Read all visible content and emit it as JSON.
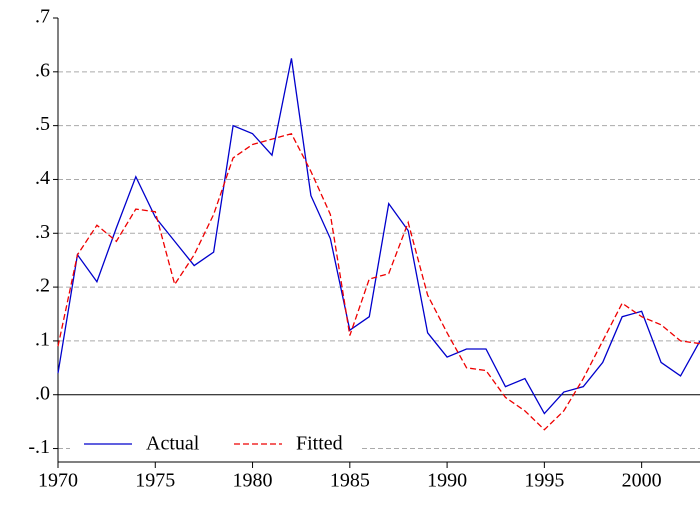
{
  "chart_data": {
    "type": "line",
    "x": [
      1970,
      1971,
      1972,
      1973,
      1974,
      1975,
      1976,
      1977,
      1978,
      1979,
      1980,
      1981,
      1982,
      1983,
      1984,
      1985,
      1986,
      1987,
      1988,
      1989,
      1990,
      1991,
      1992,
      1993,
      1994,
      1995,
      1996,
      1997,
      1998,
      1999,
      2000,
      2001,
      2002,
      2003
    ],
    "series": [
      {
        "name": "Actual",
        "color": "#0000cc",
        "style": "solid",
        "values": [
          0.04,
          0.26,
          0.21,
          0.31,
          0.405,
          0.33,
          0.285,
          0.24,
          0.265,
          0.5,
          0.485,
          0.445,
          0.625,
          0.37,
          0.29,
          0.12,
          0.145,
          0.355,
          0.305,
          0.115,
          0.07,
          0.085,
          0.085,
          0.015,
          0.03,
          -0.035,
          0.005,
          0.015,
          0.06,
          0.145,
          0.155,
          0.06,
          0.035,
          0.1
        ]
      },
      {
        "name": "Fitted",
        "color": "#ee0000",
        "style": "dashed",
        "values": [
          0.09,
          0.26,
          0.315,
          0.285,
          0.345,
          0.34,
          0.205,
          0.26,
          0.335,
          0.44,
          0.465,
          0.475,
          0.485,
          0.415,
          0.335,
          0.11,
          0.215,
          0.225,
          0.32,
          0.185,
          0.115,
          0.05,
          0.045,
          -0.005,
          -0.03,
          -0.065,
          -0.03,
          0.03,
          0.1,
          0.17,
          0.145,
          0.13,
          0.1,
          0.095
        ]
      }
    ],
    "xlim": [
      1970,
      2003
    ],
    "xticks": [
      1970,
      1975,
      1980,
      1985,
      1990,
      1995,
      2000
    ],
    "ylim": [
      -0.125,
      0.7
    ],
    "yticks": [
      {
        "value": -0.1,
        "label": "-.1"
      },
      {
        "value": 0,
        "label": ".0"
      },
      {
        "value": 0.1,
        "label": ".1"
      },
      {
        "value": 0.2,
        "label": ".2"
      },
      {
        "value": 0.3,
        "label": ".3"
      },
      {
        "value": 0.4,
        "label": ".4"
      },
      {
        "value": 0.5,
        "label": ".5"
      },
      {
        "value": 0.6,
        "label": ".6"
      },
      {
        "value": 0.7,
        "label": ".7"
      }
    ],
    "grid": true,
    "zero_line": true,
    "legend": "lower left"
  }
}
